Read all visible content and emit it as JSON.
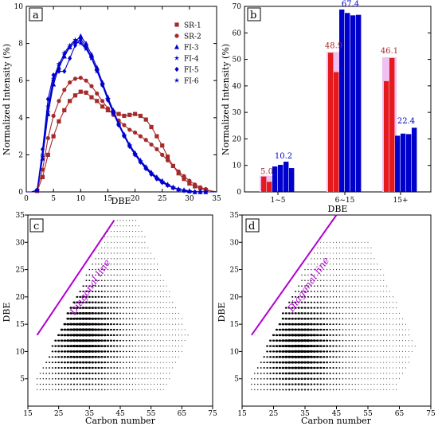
{
  "chart_data": [
    {
      "panel": "a",
      "type": "line",
      "xlabel": "DBE",
      "ylabel": "Normalized Intensity (%)",
      "xlim": [
        0,
        35
      ],
      "ylim": [
        0,
        10
      ],
      "xticks": [
        0,
        5,
        10,
        15,
        20,
        25,
        30,
        35
      ],
      "yticks": [
        0,
        2,
        4,
        6,
        8,
        10
      ],
      "legend": "top-right",
      "series": [
        {
          "name": "SR-1",
          "color": "#a52a2a",
          "marker": "square",
          "x": [
            0,
            1,
            2,
            3,
            4,
            5,
            6,
            7,
            8,
            9,
            10,
            11,
            12,
            13,
            14,
            15,
            16,
            17,
            18,
            19,
            20,
            21,
            22,
            23,
            24,
            25,
            26,
            27,
            28,
            29,
            30,
            31,
            32,
            33,
            34,
            35
          ],
          "y": [
            0,
            0,
            0.05,
            0.8,
            2.0,
            3.0,
            3.8,
            4.4,
            4.9,
            5.2,
            5.4,
            5.35,
            5.1,
            4.9,
            4.6,
            4.4,
            4.3,
            4.2,
            4.1,
            4.15,
            4.2,
            4.1,
            3.9,
            3.5,
            3.0,
            2.5,
            1.9,
            1.4,
            1.0,
            0.7,
            0.45,
            0.3,
            0.2,
            0.1,
            0.05,
            0
          ]
        },
        {
          "name": "SR-2",
          "color": "#a52a2a",
          "marker": "circle",
          "x": [
            0,
            1,
            2,
            3,
            4,
            5,
            6,
            7,
            8,
            9,
            10,
            11,
            12,
            13,
            14,
            15,
            16,
            17,
            18,
            19,
            20,
            21,
            22,
            23,
            24,
            25,
            26,
            27,
            28,
            29,
            30,
            31,
            32,
            33,
            34,
            35
          ],
          "y": [
            0,
            0,
            0.1,
            1.2,
            2.9,
            4.1,
            4.9,
            5.5,
            5.9,
            6.1,
            6.15,
            6.0,
            5.7,
            5.3,
            4.9,
            4.5,
            4.15,
            3.85,
            3.6,
            3.35,
            3.2,
            3.0,
            2.8,
            2.55,
            2.3,
            2.0,
            1.7,
            1.4,
            1.1,
            0.85,
            0.6,
            0.4,
            0.25,
            0.15,
            0.05,
            0
          ]
        },
        {
          "name": "FI-3",
          "color": "#0000cd",
          "marker": "triangle",
          "x": [
            0,
            1,
            2,
            3,
            4,
            5,
            6,
            7,
            8,
            9,
            10,
            11,
            12,
            13,
            14,
            15,
            16,
            17,
            18,
            19,
            20,
            21,
            22,
            23,
            24,
            25,
            26,
            27,
            28,
            29,
            30,
            31,
            32,
            33,
            34,
            35
          ],
          "y": [
            0,
            0,
            0.1,
            1.8,
            4.2,
            5.8,
            6.7,
            7.3,
            7.8,
            8.1,
            8.4,
            8.0,
            7.4,
            6.7,
            5.9,
            5.1,
            4.4,
            3.7,
            3.1,
            2.55,
            2.1,
            1.7,
            1.35,
            1.05,
            0.8,
            0.6,
            0.4,
            0.25,
            0.15,
            0.1,
            0.05,
            0,
            0,
            0,
            0,
            0
          ]
        },
        {
          "name": "FI-4",
          "color": "#0000cd",
          "marker": "star",
          "x": [
            0,
            1,
            2,
            3,
            4,
            5,
            6,
            7,
            8,
            9,
            10,
            11,
            12,
            13,
            14,
            15,
            16,
            17,
            18,
            19,
            20,
            21,
            22,
            23,
            24,
            25,
            26,
            27,
            28,
            29,
            30,
            31,
            32,
            33,
            34,
            35
          ],
          "y": [
            0,
            0,
            0.1,
            2.0,
            4.6,
            6.1,
            6.9,
            7.4,
            7.8,
            8.1,
            8.0,
            7.7,
            7.2,
            6.5,
            5.8,
            5.0,
            4.3,
            3.65,
            3.05,
            2.5,
            2.05,
            1.65,
            1.3,
            1.0,
            0.75,
            0.55,
            0.38,
            0.25,
            0.15,
            0.08,
            0.04,
            0,
            0,
            0,
            0,
            0
          ]
        },
        {
          "name": "FI-5",
          "color": "#0000cd",
          "marker": "diamond",
          "x": [
            0,
            1,
            2,
            3,
            4,
            5,
            6,
            7,
            8,
            9,
            10,
            11,
            12,
            13,
            14,
            15,
            16,
            17,
            18,
            19,
            20,
            21,
            22,
            23,
            24,
            25,
            26,
            27,
            28,
            29,
            30,
            31,
            32,
            33,
            34,
            35
          ],
          "y": [
            0,
            0,
            0.1,
            2.3,
            5.0,
            6.3,
            6.5,
            6.5,
            7.2,
            7.9,
            8.25,
            7.85,
            7.25,
            6.55,
            5.75,
            4.95,
            4.25,
            3.6,
            3.0,
            2.45,
            2.0,
            1.6,
            1.25,
            0.95,
            0.7,
            0.5,
            0.35,
            0.22,
            0.13,
            0.07,
            0.03,
            0,
            0,
            0,
            0,
            0
          ]
        },
        {
          "name": "FI-6",
          "color": "#0000cd",
          "marker": "star",
          "x": [
            0,
            1,
            2,
            3,
            4,
            5,
            6,
            7,
            8,
            9,
            10,
            11,
            12,
            13,
            14,
            15,
            16,
            17,
            18,
            19,
            20,
            21,
            22,
            23,
            24,
            25,
            26,
            27,
            28,
            29,
            30,
            31,
            32,
            33,
            34,
            35
          ],
          "y": [
            0,
            0,
            0.1,
            1.9,
            4.3,
            6.0,
            6.8,
            7.5,
            7.9,
            8.2,
            8.1,
            7.75,
            7.25,
            6.55,
            5.8,
            5.0,
            4.3,
            3.65,
            3.05,
            2.5,
            2.05,
            1.65,
            1.3,
            1.0,
            0.75,
            0.55,
            0.38,
            0.25,
            0.15,
            0.08,
            0.04,
            0,
            0,
            0,
            0,
            0
          ]
        }
      ]
    },
    {
      "panel": "b",
      "type": "bar",
      "xlabel": "DBE",
      "ylabel": "Normalized Intensity (%)",
      "ylim": [
        0,
        70
      ],
      "yticks": [
        0,
        10,
        20,
        30,
        40,
        50,
        60,
        70
      ],
      "categories": [
        "1~5",
        "6~15",
        "15+"
      ],
      "series": [
        {
          "name": "SR-1",
          "color": "#e41a1c",
          "values": [
            5.8,
            52.5,
            41.8
          ]
        },
        {
          "name": "SR-2",
          "color": "#e41a1c",
          "values": [
            3.8,
            45.2,
            50.5
          ]
        },
        {
          "name": "FI-3",
          "color": "#0000cd",
          "values": [
            9.6,
            68.8,
            21.2
          ]
        },
        {
          "name": "FI-4",
          "color": "#0000cd",
          "values": [
            10.2,
            67.5,
            22.0
          ]
        },
        {
          "name": "FI-5",
          "color": "#0000cd",
          "values": [
            11.4,
            66.6,
            21.8
          ]
        },
        {
          "name": "FI-6",
          "color": "#0000cd",
          "values": [
            9.0,
            66.8,
            24.2
          ]
        }
      ],
      "annotations": [
        {
          "text": "5.0",
          "color": "#a52a2a",
          "category": "1~5",
          "y": 6.8
        },
        {
          "text": "10.2",
          "color": "#0000cd",
          "category": "1~5",
          "y": 12.6
        },
        {
          "text": "48.9",
          "color": "#a52a2a",
          "category": "6~15",
          "y": 54.2
        },
        {
          "text": "67.4",
          "color": "#0000cd",
          "category": "6~15",
          "y": 70.0
        },
        {
          "text": "46.1",
          "color": "#a52a2a",
          "category": "15+",
          "y": 52.2
        },
        {
          "text": "22.4",
          "color": "#0000cd",
          "category": "15+",
          "y": 25.8
        }
      ],
      "highlight_color": "#f0c0f0"
    },
    {
      "panel": "c",
      "type": "scatter",
      "xlabel": "Carbon number",
      "ylabel": "DBE",
      "xlim": [
        15,
        75
      ],
      "ylim": [
        0,
        35
      ],
      "xticks": [
        15,
        25,
        35,
        45,
        55,
        65,
        75
      ],
      "yticks": [
        5,
        10,
        15,
        20,
        25,
        30,
        35
      ],
      "annotation": {
        "text": "Diagonal line",
        "color": "#b000d0",
        "x1": 18,
        "y1": 13,
        "x2": 43,
        "y2": 34
      },
      "distribution": {
        "center_x": 33,
        "center_y": 13,
        "min_dbe": 3,
        "max_dbe": 34,
        "max_carbon": 67
      }
    },
    {
      "panel": "d",
      "type": "scatter",
      "xlabel": "Carbon number",
      "ylabel": "DBE",
      "xlim": [
        15,
        75
      ],
      "ylim": [
        0,
        35
      ],
      "xticks": [
        15,
        25,
        35,
        45,
        55,
        65,
        75
      ],
      "yticks": [
        5,
        10,
        15,
        20,
        25,
        30,
        35
      ],
      "annotation": {
        "text": "Diagonal line",
        "color": "#b000d0",
        "x1": 18,
        "y1": 13,
        "x2": 45,
        "y2": 35
      },
      "distribution": {
        "center_x": 33,
        "center_y": 11,
        "min_dbe": 3,
        "max_dbe": 30,
        "max_carbon": 70
      }
    }
  ]
}
